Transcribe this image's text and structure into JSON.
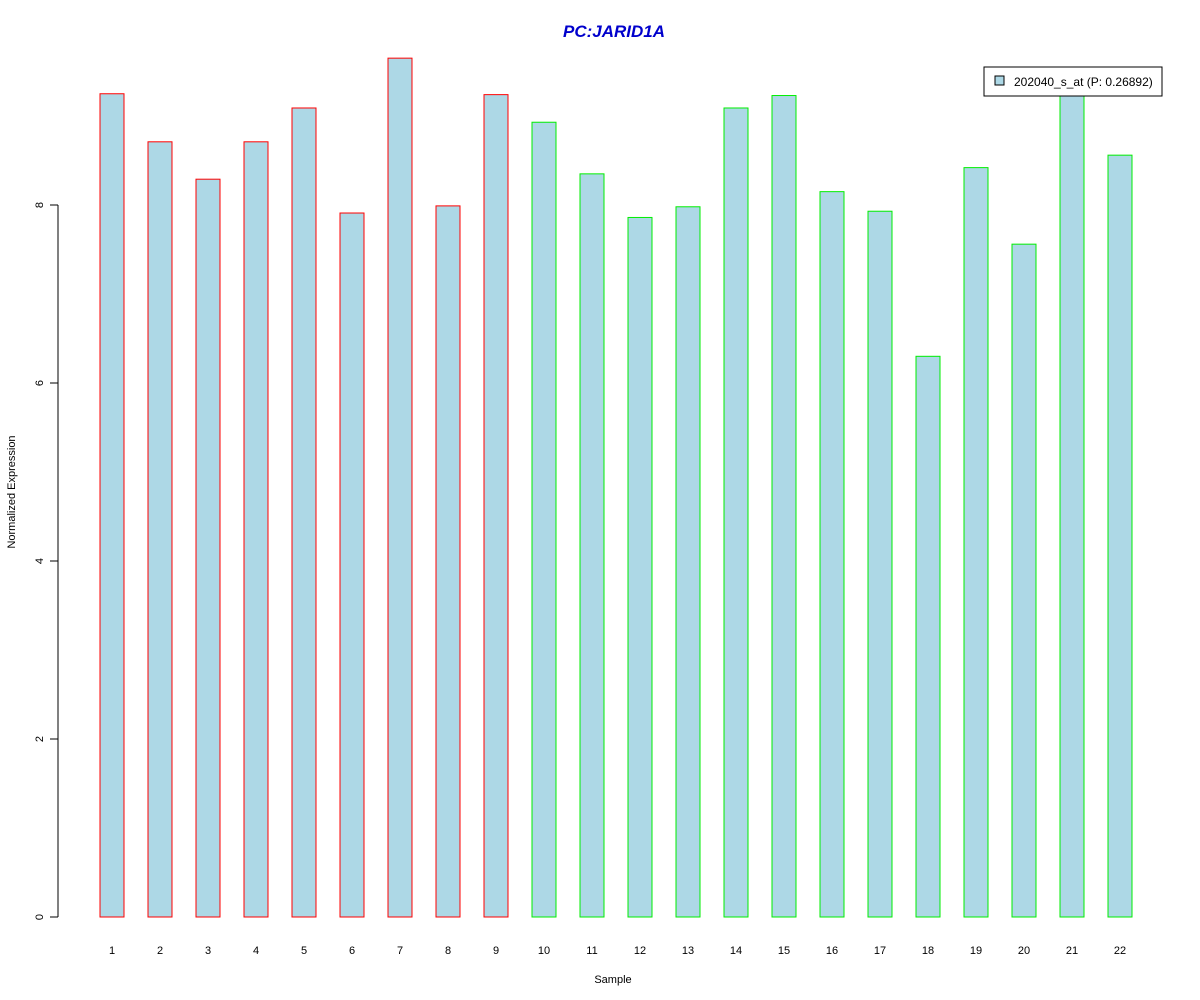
{
  "chart_data": {
    "type": "bar",
    "title": "PC:JARID1A",
    "xlabel": "Sample",
    "ylabel": "Normalized Expression",
    "categories": [
      "1",
      "2",
      "3",
      "4",
      "5",
      "6",
      "7",
      "8",
      "9",
      "10",
      "11",
      "12",
      "13",
      "14",
      "15",
      "16",
      "17",
      "18",
      "19",
      "20",
      "21",
      "22"
    ],
    "series": [
      {
        "name": "202040_s_at (P: 0.26892)",
        "values": [
          9.25,
          8.71,
          8.29,
          8.71,
          9.09,
          7.91,
          9.65,
          7.99,
          9.24,
          8.93,
          8.35,
          7.86,
          7.98,
          9.09,
          9.23,
          8.15,
          7.93,
          6.3,
          8.42,
          7.56,
          9.24,
          8.56
        ]
      }
    ],
    "groups": [
      {
        "samples": [
          1,
          2,
          3,
          4,
          5,
          6,
          7,
          8,
          9
        ],
        "border_color": "#ff0000"
      },
      {
        "samples": [
          10,
          11,
          12,
          13,
          14,
          15,
          16,
          17,
          18,
          19,
          20,
          21,
          22
        ],
        "border_color": "#00ee00"
      }
    ],
    "bar_fill": "#add8e6",
    "yticks": [
      0,
      2,
      4,
      6,
      8
    ],
    "ylim": [
      0,
      9.9
    ],
    "grid": false,
    "legend": {
      "position": "top-right",
      "label": "202040_s_at (P: 0.26892)"
    },
    "colors": {
      "title": "#0000cc",
      "axis": "#000000"
    }
  }
}
